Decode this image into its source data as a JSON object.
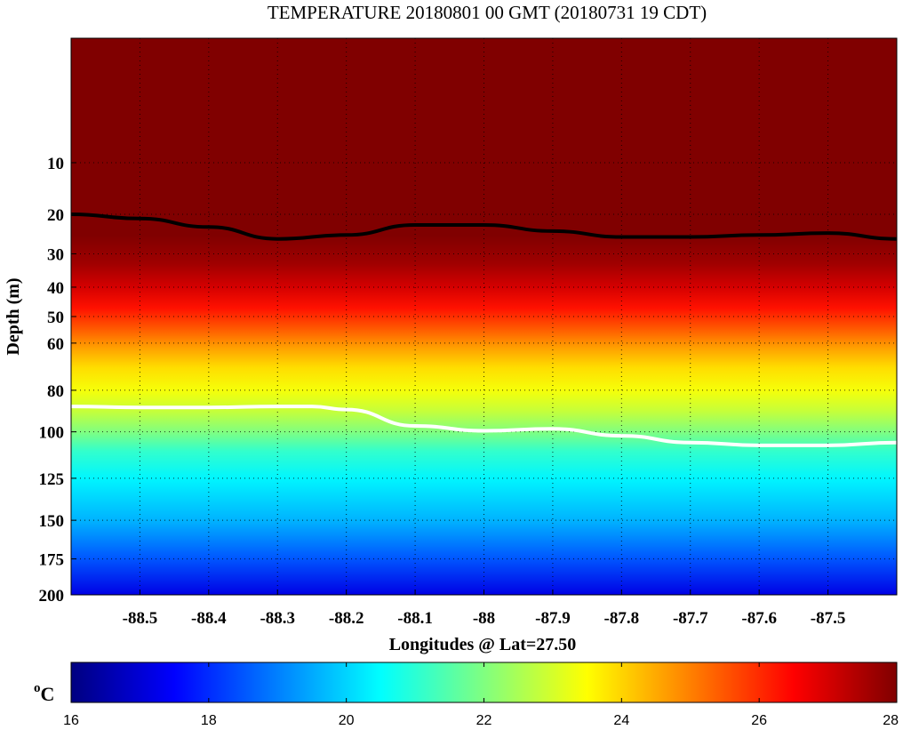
{
  "chart_data": {
    "type": "heatmap",
    "title": "TEMPERATURE 20180801 00 GMT (20180731 19 CDT)",
    "xlabel": "Longitudes @ Lat=27.50",
    "ylabel": "Depth (m)",
    "xlim": [
      -88.6,
      -87.4
    ],
    "ylim": [
      0,
      200
    ],
    "y_axis_scale": "sqrt",
    "y_inverted": true,
    "x_ticks": [
      -88.5,
      -88.4,
      -88.3,
      -88.2,
      -88.1,
      -88,
      -87.9,
      -87.8,
      -87.7,
      -87.6,
      -87.5
    ],
    "x_tick_labels": [
      "-88.5",
      "-88.4",
      "-88.3",
      "-88.2",
      "-88.1",
      "-88",
      "-87.9",
      "-87.8",
      "-87.7",
      "-87.6",
      "-87.5"
    ],
    "y_ticks": [
      10,
      20,
      30,
      40,
      50,
      60,
      80,
      100,
      125,
      150,
      175,
      200
    ],
    "y_tick_labels": [
      "10",
      "20",
      "30",
      "40",
      "50",
      "60",
      "80",
      "100",
      "125",
      "150",
      "175",
      "200"
    ],
    "grid": true,
    "colormap": "jet",
    "colorbar": {
      "orientation": "horizontal",
      "placement": "bottom",
      "unit_label": "oC",
      "range": [
        16,
        28
      ],
      "ticks": [
        16,
        18,
        20,
        22,
        24,
        26,
        28
      ],
      "tick_labels": [
        "16",
        "18",
        "20",
        "22",
        "24",
        "26",
        "28"
      ]
    },
    "temperature_profile": {
      "depth_m": [
        0,
        25,
        33,
        40,
        47,
        55,
        62,
        70,
        80,
        90,
        100,
        110,
        125,
        150,
        175,
        200
      ],
      "temperature_c": [
        28,
        28,
        27.6,
        27,
        26.3,
        25.4,
        24.6,
        23.9,
        23.4,
        22.8,
        22.0,
        21.1,
        20.4,
        19.6,
        18.5,
        17.2
      ]
    },
    "contours": [
      {
        "level_c": 28,
        "color": "#000000",
        "x": [
          -88.6,
          -88.5,
          -88.4,
          -88.3,
          -88.2,
          -88.1,
          -88.0,
          -87.9,
          -87.8,
          -87.7,
          -87.6,
          -87.5,
          -87.4
        ],
        "depth_m": [
          20,
          21,
          23,
          26,
          25,
          22.5,
          22.5,
          24,
          25.5,
          25.5,
          25,
          24.5,
          26
        ]
      },
      {
        "level_c": 22,
        "color": "#ffffff",
        "x": [
          -88.6,
          -88.5,
          -88.4,
          -88.3,
          -88.25,
          -88.2,
          -88.1,
          -88.0,
          -87.9,
          -87.8,
          -87.7,
          -87.6,
          -87.5,
          -87.4
        ],
        "depth_m": [
          87.5,
          88,
          88,
          87.5,
          87.5,
          89,
          97,
          99.5,
          98.5,
          102,
          105.5,
          107,
          107,
          105.5
        ]
      }
    ]
  }
}
